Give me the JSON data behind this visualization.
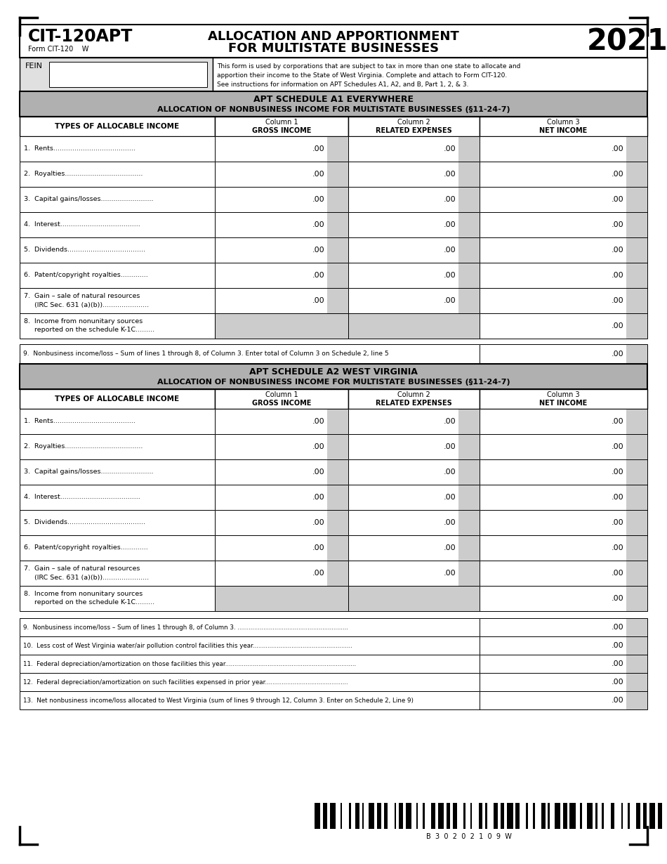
{
  "title_left": "CIT-120APT",
  "title_sub": "Form CIT-120    W",
  "title_year": "2021",
  "fein_label": "FEIN",
  "fein_desc": "This form is used by corporations that are subject to tax in more than one state to allocate and\napportion their income to the State of West Virginia. Complete and attach to Form CIT-120.\nSee instructions for information on APT Schedules A1, A2, and B, Part 1, 2, & 3.",
  "schedule_a1_title": "APT SCHEDULE A1 EVERYWHERE",
  "schedule_a1_subtitle": "ALLOCATION OF NONBUSINESS INCOME FOR MULTISTATE BUSINESSES (§11-24-7)",
  "schedule_a2_title": "APT SCHEDULE A2 WEST VIRGINIA",
  "schedule_a2_subtitle": "ALLOCATION OF NONBUSINESS INCOME FOR MULTISTATE BUSINESSES (§11-24-7)",
  "types_label": "TYPES OF ALLOCABLE INCOME",
  "rows_a1": [
    "1.  Rents.......................................",
    "2.  Royalties.....................................",
    "3.  Capital gains/losses.........................",
    "4.  Interest......................................",
    "5.  Dividends.....................................",
    "6.  Patent/copyright royalties.............",
    "7.  Gain – sale of natural resources\n     (IRC Sec. 631 (a)(b))......................",
    "8.  Income from nonunitary sources\n     reported on the schedule K-1C........."
  ],
  "row9_a1": "9.  Nonbusiness income/loss – Sum of lines 1 through 8, of Column 3. Enter total of Column 3 on Schedule 2, line 5",
  "rows_a2": [
    "1.  Rents.......................................",
    "2.  Royalties.....................................",
    "3.  Capital gains/losses.........................",
    "4.  Interest......................................",
    "5.  Dividends.....................................",
    "6.  Patent/copyright royalties.............",
    "7.  Gain – sale of natural resources\n     (IRC Sec. 631 (a)(b))......................",
    "8.  Income from nonunitary sources\n     reported on the schedule K-1C........."
  ],
  "rows_a2_extra": [
    "9.  Nonbusiness income/loss – Sum of lines 1 through 8, of Column 3. ............................................................",
    "10.  Less cost of West Virginia water/air pollution control facilities this year......................................................",
    "11.  Federal depreciation/amortization on those facilities this year.......................................................................",
    "12.  Federal depreciation/amortization on such facilities expensed in prior year.............................................",
    "13.  Net nonbusiness income/loss allocated to West Virginia (sum of lines 9 through 12, Column 3. Enter on Schedule 2, Line 9)"
  ],
  "gray_shade": "#cccccc",
  "dark_gray_hdr": "#b0b0b0",
  "white": "#ffffff",
  "black": "#000000"
}
